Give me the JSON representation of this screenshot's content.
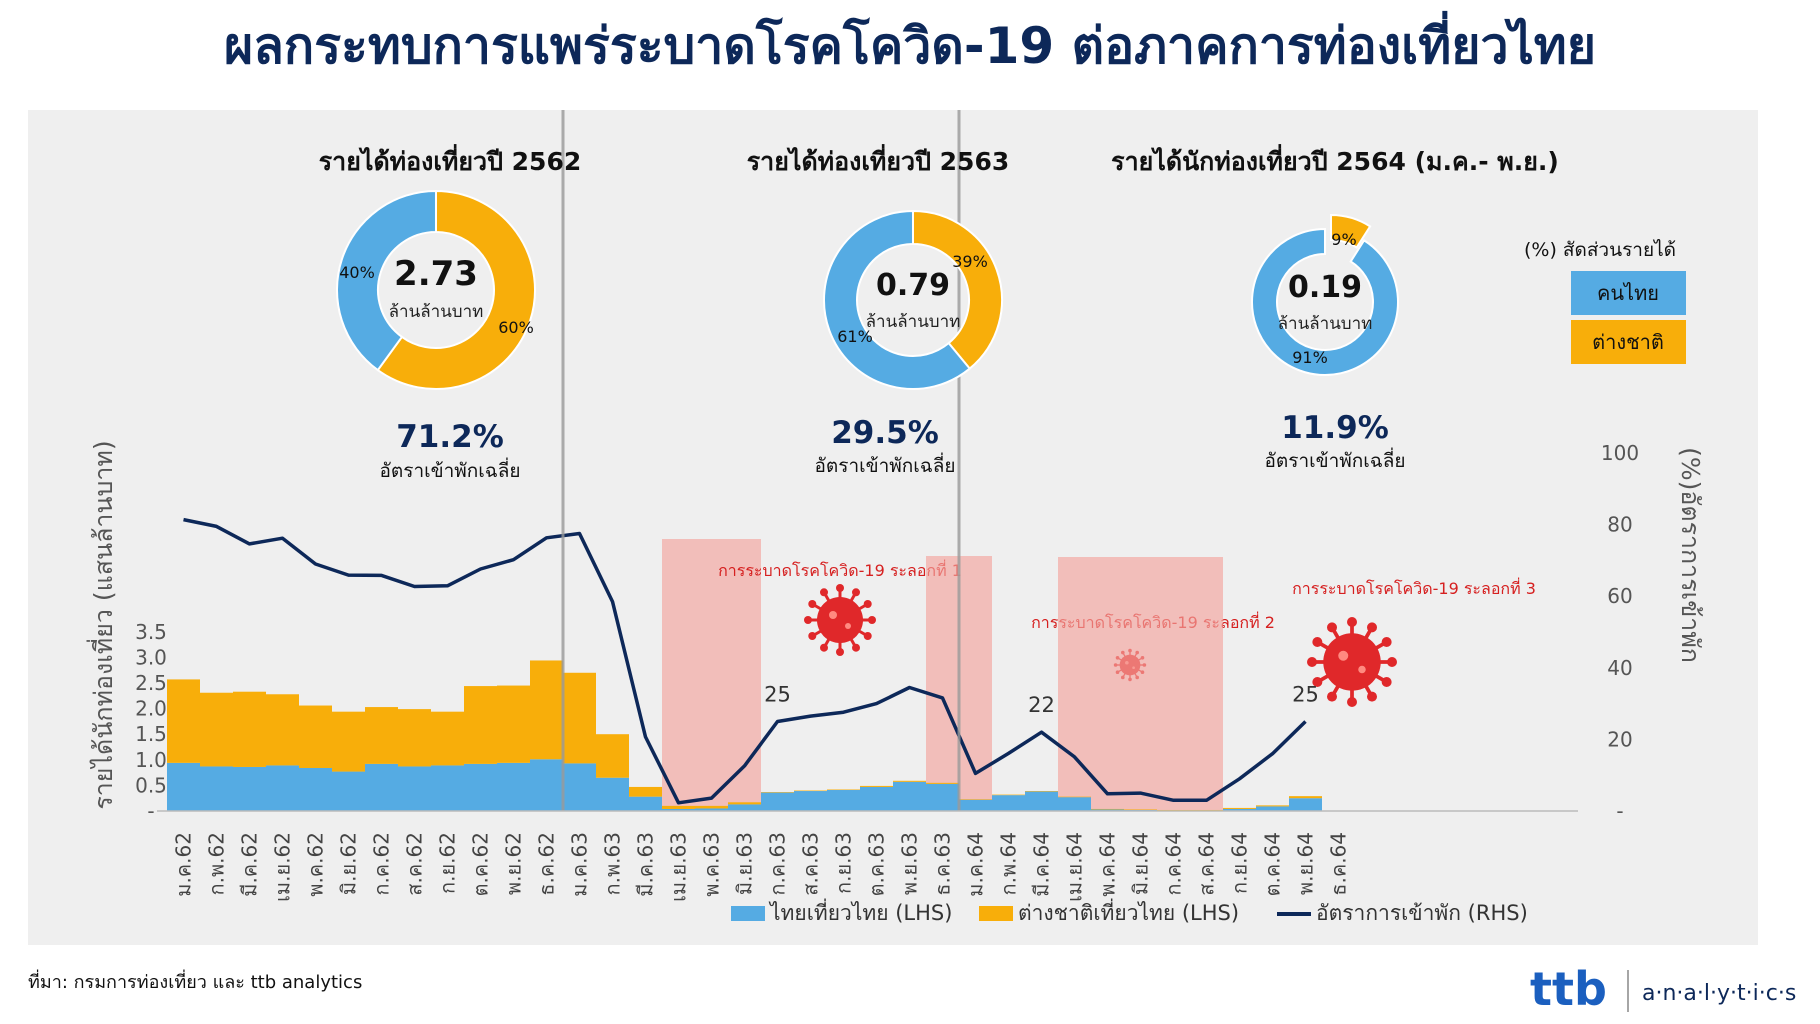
{
  "title": "ผลกระทบการแพร่ระบาดโรคโควิด-19 ต่อภาคการท่องเที่ยวไทย",
  "source": "ที่มา: กรมการท่องเที่ยว และ ttb analytics",
  "brand": {
    "logo_text": "ttb",
    "analytics_text": "a·n·a·l·y·t·i·c·s"
  },
  "colors": {
    "thai": "#55ABE3",
    "foreign": "#F8AE0A",
    "line": "#0D2859",
    "title": "#0D2859",
    "wave": "#F2A39C",
    "virus": "#E0282A",
    "wave_text": "#D62020"
  },
  "donuts": [
    {
      "heading": "รายได้ท่องเที่ยวปี 2562",
      "total": "2.73",
      "unit": "ล้านล้านบาท",
      "thai_pct": 40,
      "foreign_pct": 60,
      "thai_label": "40%",
      "foreign_label": "60%",
      "occupancy": "71.2%",
      "occupancy_label": "อัตราเข้าพักเฉลี่ย"
    },
    {
      "heading": "รายได้ท่องเที่ยวปี 2563",
      "total": "0.79",
      "unit": "ล้านล้านบาท",
      "thai_pct": 61,
      "foreign_pct": 39,
      "thai_label": "61%",
      "foreign_label": "39%",
      "occupancy": "29.5%",
      "occupancy_label": "อัตราเข้าพักเฉลี่ย"
    },
    {
      "heading": "รายได้นักท่องเที่ยวปี 2564 (ม.ค.- พ.ย.)",
      "total": "0.19",
      "unit": "ล้านล้านบาท",
      "thai_pct": 91,
      "foreign_pct": 9,
      "thai_label": "91%",
      "foreign_label": "9%",
      "occupancy": "11.9%",
      "occupancy_label": "อัตราเข้าพักเฉลี่ย"
    }
  ],
  "share_legend": {
    "title": "(%) สัดส่วนรายได้",
    "thai": "คนไทย",
    "foreign": "ต่างชาติ"
  },
  "waves": [
    {
      "label": "การระบาดโรคโควิด-19 ระลอกที่ 1",
      "from": "เม.ย.63",
      "to": "มิ.ย.63"
    },
    {
      "label": "การระบาดโรคโควิด-19 ระลอกที่ 2",
      "from": "ธ.ค.63",
      "to": "ม.ค.64"
    },
    {
      "label": "การระบาดโรคโควิด-19 ระลอกที่ 3",
      "from": "เม.ย.64",
      "to": "ส.ค.64"
    }
  ],
  "chart_data": {
    "type": "bar",
    "stacked": true,
    "categories": [
      "ม.ค.62",
      "ก.พ.62",
      "มี.ค.62",
      "เม.ย.62",
      "พ.ค.62",
      "มิ.ย.62",
      "ก.ค.62",
      "ส.ค.62",
      "ก.ย.62",
      "ต.ค.62",
      "พ.ย.62",
      "ธ.ค.62",
      "ม.ค.63",
      "ก.พ.63",
      "มี.ค.63",
      "เม.ย.63",
      "พ.ค.63",
      "มิ.ย.63",
      "ก.ค.63",
      "ส.ค.63",
      "ก.ย.63",
      "ต.ค.63",
      "พ.ย.63",
      "ธ.ค.63",
      "ม.ค.64",
      "ก.พ.64",
      "มี.ค.64",
      "เม.ย.64",
      "พ.ค.64",
      "มิ.ย.64",
      "ก.ค.64",
      "ส.ค.64",
      "ก.ย.64",
      "ต.ค.64",
      "พ.ย.64",
      "ธ.ค.64"
    ],
    "series": [
      {
        "name": "ไทยเที่ยวไทย (LHS)",
        "axis": "left",
        "values": [
          0.94,
          0.87,
          0.86,
          0.89,
          0.84,
          0.77,
          0.92,
          0.87,
          0.89,
          0.92,
          0.94,
          1.01,
          0.93,
          0.65,
          0.28,
          0.04,
          0.05,
          0.13,
          0.36,
          0.39,
          0.41,
          0.47,
          0.57,
          0.53,
          0.22,
          0.31,
          0.38,
          0.27,
          0.03,
          0.02,
          0.01,
          0.01,
          0.04,
          0.09,
          0.25,
          null
        ]
      },
      {
        "name": "ต่างชาติเที่ยวไทย (LHS)",
        "axis": "left",
        "values": [
          1.63,
          1.44,
          1.47,
          1.39,
          1.22,
          1.17,
          1.11,
          1.12,
          1.05,
          1.52,
          1.51,
          1.93,
          1.77,
          0.85,
          0.19,
          0.06,
          0.05,
          0.04,
          0.01,
          0.01,
          0.01,
          0.02,
          0.02,
          0.02,
          0.01,
          0.01,
          0.01,
          0.01,
          0.01,
          0.01,
          0.01,
          0.01,
          0.02,
          0.02,
          0.04,
          null
        ]
      },
      {
        "name": "อัตราการเข้าพัก (RHS)",
        "axis": "right",
        "type": "line",
        "values": [
          81.4,
          79.5,
          74.6,
          76.2,
          69.0,
          65.9,
          65.8,
          62.7,
          62.9,
          67.6,
          70.2,
          76.3,
          77.5,
          58.5,
          20.7,
          2.3,
          3.6,
          12.6,
          25.0,
          26.5,
          27.6,
          30.0,
          34.5,
          31.6,
          10.5,
          16.1,
          22.0,
          15.1,
          4.8,
          5.0,
          3.0,
          3.0,
          9.0,
          16.0,
          25.0,
          null
        ]
      }
    ],
    "data_labels": [
      {
        "category": "ก.ค.63",
        "text": "25"
      },
      {
        "category": "มี.ค.64",
        "text": "22"
      },
      {
        "category": "พ.ย.64",
        "text": "25"
      }
    ],
    "left_axis": {
      "label": "รายได้นักท่องเที่ยว (แสนล้านบาท)",
      "ticks": [
        "-",
        "0.5",
        "1.0",
        "1.5",
        "2.0",
        "2.5",
        "3.0",
        "3.5"
      ],
      "ylim": [
        0,
        3.5
      ]
    },
    "right_axis": {
      "label": "(%)อัตราการเข้าพัก",
      "ticks": [
        "-",
        "20",
        "40",
        "60",
        "80",
        "100"
      ],
      "ylim": [
        0,
        100
      ]
    },
    "legend": [
      "ไทยเที่ยวไทย (LHS)",
      "ต่างชาติเที่ยวไทย (LHS)",
      "อัตราการเข้าพัก (RHS)"
    ],
    "legend_position": "bottom"
  }
}
